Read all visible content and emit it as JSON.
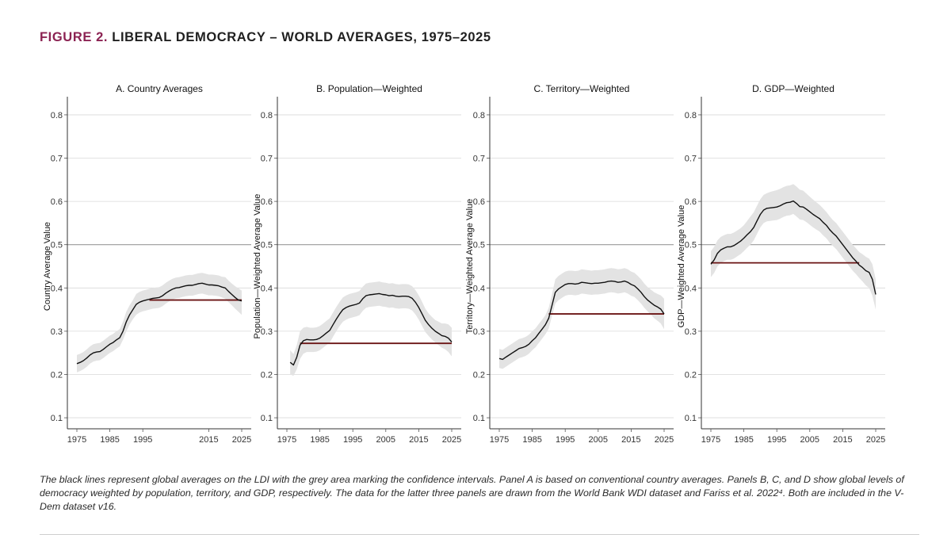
{
  "figure": {
    "number": "FIGURE 2.",
    "title": "LIBERAL DEMOCRACY – WORLD AVERAGES, 1975–2025"
  },
  "caption": "The black lines represent global averages on the LDI with the grey area marking the confidence intervals. Panel A is based on conventional country averages. Panels B, C, and D show global levels of democracy weighted by population, territory, and GDP, respectively. The data for the latter three panels are drawn from the World Bank WDI dataset and Fariss et al. 2022⁴.  Both are included in the V-Dem dataset v16.",
  "colors": {
    "line": "#111111",
    "band": "#e3e3e3",
    "reference_line": "#6b1414",
    "grid": "#d9d9d9",
    "midline": "#9a9a9a",
    "accent": "#8b2252"
  },
  "chart_data": [
    {
      "type": "line",
      "title": "A. Country Averages",
      "xlabel": "",
      "ylabel": "Country Average Value",
      "xlim": [
        1975,
        2025
      ],
      "ylim": [
        0.08,
        0.82
      ],
      "x_ticks": [
        1975,
        1985,
        1995,
        2015,
        2025
      ],
      "y_ticks": [
        0.1,
        0.2,
        0.3,
        0.4,
        0.5,
        0.6,
        0.7,
        0.8
      ],
      "grid": true,
      "highlight_y": 0.5,
      "reference": {
        "from": 1997,
        "to": 2025,
        "value": 0.372
      },
      "x": [
        1975,
        1976,
        1977,
        1978,
        1979,
        1980,
        1981,
        1982,
        1983,
        1984,
        1985,
        1986,
        1987,
        1988,
        1989,
        1990,
        1991,
        1992,
        1993,
        1994,
        1995,
        1996,
        1997,
        1998,
        1999,
        2000,
        2001,
        2002,
        2003,
        2004,
        2005,
        2006,
        2007,
        2008,
        2009,
        2010,
        2011,
        2012,
        2013,
        2014,
        2015,
        2016,
        2017,
        2018,
        2019,
        2020,
        2021,
        2022,
        2023,
        2024,
        2025
      ],
      "y": [
        0.225,
        0.228,
        0.232,
        0.238,
        0.245,
        0.25,
        0.252,
        0.253,
        0.258,
        0.264,
        0.27,
        0.274,
        0.28,
        0.285,
        0.3,
        0.322,
        0.338,
        0.35,
        0.362,
        0.367,
        0.37,
        0.372,
        0.374,
        0.376,
        0.377,
        0.378,
        0.382,
        0.388,
        0.393,
        0.397,
        0.4,
        0.401,
        0.403,
        0.405,
        0.406,
        0.406,
        0.408,
        0.41,
        0.411,
        0.409,
        0.407,
        0.407,
        0.406,
        0.405,
        0.402,
        0.4,
        0.392,
        0.385,
        0.378,
        0.372,
        0.37
      ],
      "lower": [
        0.205,
        0.208,
        0.212,
        0.218,
        0.225,
        0.23,
        0.232,
        0.233,
        0.238,
        0.244,
        0.25,
        0.254,
        0.26,
        0.265,
        0.28,
        0.3,
        0.316,
        0.328,
        0.338,
        0.343,
        0.346,
        0.348,
        0.35,
        0.352,
        0.353,
        0.354,
        0.358,
        0.364,
        0.369,
        0.373,
        0.376,
        0.377,
        0.379,
        0.381,
        0.382,
        0.382,
        0.384,
        0.386,
        0.387,
        0.385,
        0.383,
        0.383,
        0.382,
        0.381,
        0.378,
        0.375,
        0.367,
        0.36,
        0.352,
        0.345,
        0.338
      ],
      "upper": [
        0.245,
        0.248,
        0.252,
        0.258,
        0.265,
        0.27,
        0.272,
        0.273,
        0.278,
        0.284,
        0.29,
        0.294,
        0.3,
        0.305,
        0.322,
        0.345,
        0.36,
        0.372,
        0.386,
        0.391,
        0.394,
        0.396,
        0.398,
        0.4,
        0.401,
        0.402,
        0.406,
        0.412,
        0.417,
        0.421,
        0.424,
        0.425,
        0.427,
        0.429,
        0.43,
        0.43,
        0.432,
        0.434,
        0.435,
        0.433,
        0.431,
        0.431,
        0.43,
        0.429,
        0.426,
        0.425,
        0.417,
        0.41,
        0.404,
        0.399,
        0.394
      ]
    },
    {
      "type": "line",
      "title": "B. Population—Weighted",
      "xlabel": "",
      "ylabel": "Population—Weighted Average Value",
      "xlim": [
        1975,
        2025
      ],
      "ylim": [
        0.08,
        0.82
      ],
      "x_ticks": [
        1975,
        1985,
        1995,
        2005,
        2015,
        2025
      ],
      "y_ticks": [
        0.1,
        0.2,
        0.3,
        0.4,
        0.5,
        0.6,
        0.7,
        0.8
      ],
      "grid": true,
      "highlight_y": 0.5,
      "reference": {
        "from": 1979,
        "to": 2025,
        "value": 0.272
      },
      "x": [
        1976,
        1977,
        1978,
        1979,
        1980,
        1981,
        1982,
        1983,
        1984,
        1985,
        1986,
        1987,
        1988,
        1989,
        1990,
        1991,
        1992,
        1993,
        1994,
        1995,
        1996,
        1997,
        1998,
        1999,
        2000,
        2001,
        2002,
        2003,
        2004,
        2005,
        2006,
        2007,
        2008,
        2009,
        2010,
        2011,
        2012,
        2013,
        2014,
        2015,
        2016,
        2017,
        2018,
        2019,
        2020,
        2021,
        2022,
        2023,
        2024,
        2025
      ],
      "y": [
        0.228,
        0.222,
        0.24,
        0.268,
        0.278,
        0.281,
        0.28,
        0.28,
        0.281,
        0.284,
        0.29,
        0.296,
        0.302,
        0.315,
        0.328,
        0.34,
        0.35,
        0.355,
        0.358,
        0.36,
        0.362,
        0.365,
        0.375,
        0.382,
        0.384,
        0.385,
        0.386,
        0.387,
        0.385,
        0.384,
        0.382,
        0.383,
        0.381,
        0.38,
        0.381,
        0.381,
        0.38,
        0.376,
        0.367,
        0.355,
        0.34,
        0.325,
        0.315,
        0.307,
        0.3,
        0.295,
        0.29,
        0.288,
        0.284,
        0.275
      ],
      "lower": [
        0.2,
        0.197,
        0.212,
        0.236,
        0.248,
        0.252,
        0.252,
        0.252,
        0.253,
        0.256,
        0.262,
        0.268,
        0.274,
        0.287,
        0.3,
        0.312,
        0.322,
        0.327,
        0.33,
        0.332,
        0.334,
        0.337,
        0.347,
        0.354,
        0.356,
        0.357,
        0.358,
        0.359,
        0.357,
        0.356,
        0.354,
        0.355,
        0.353,
        0.352,
        0.353,
        0.353,
        0.352,
        0.348,
        0.339,
        0.327,
        0.312,
        0.298,
        0.289,
        0.281,
        0.274,
        0.268,
        0.262,
        0.258,
        0.252,
        0.242
      ],
      "upper": [
        0.256,
        0.247,
        0.268,
        0.3,
        0.308,
        0.31,
        0.308,
        0.308,
        0.309,
        0.312,
        0.318,
        0.324,
        0.33,
        0.343,
        0.356,
        0.368,
        0.378,
        0.383,
        0.386,
        0.388,
        0.39,
        0.393,
        0.403,
        0.41,
        0.412,
        0.413,
        0.414,
        0.415,
        0.413,
        0.412,
        0.41,
        0.411,
        0.409,
        0.408,
        0.409,
        0.409,
        0.408,
        0.404,
        0.395,
        0.383,
        0.368,
        0.352,
        0.341,
        0.333,
        0.326,
        0.322,
        0.318,
        0.318,
        0.316,
        0.308
      ]
    },
    {
      "type": "line",
      "title": "C. Territory—Weighted",
      "xlabel": "",
      "ylabel": "Territory—Weighted Average Value",
      "xlim": [
        1975,
        2025
      ],
      "ylim": [
        0.08,
        0.82
      ],
      "x_ticks": [
        1975,
        1985,
        1995,
        2005,
        2015,
        2025
      ],
      "y_ticks": [
        0.1,
        0.2,
        0.3,
        0.4,
        0.5,
        0.6,
        0.7,
        0.8
      ],
      "grid": true,
      "highlight_y": 0.5,
      "reference": {
        "from": 1990,
        "to": 2025,
        "value": 0.34
      },
      "x": [
        1975,
        1976,
        1977,
        1978,
        1979,
        1980,
        1981,
        1982,
        1983,
        1984,
        1985,
        1986,
        1987,
        1988,
        1989,
        1990,
        1991,
        1992,
        1993,
        1994,
        1995,
        1996,
        1997,
        1998,
        1999,
        2000,
        2001,
        2002,
        2003,
        2004,
        2005,
        2006,
        2007,
        2008,
        2009,
        2010,
        2011,
        2012,
        2013,
        2014,
        2015,
        2016,
        2017,
        2018,
        2019,
        2020,
        2021,
        2022,
        2023,
        2024,
        2025
      ],
      "y": [
        0.237,
        0.235,
        0.24,
        0.245,
        0.25,
        0.255,
        0.26,
        0.262,
        0.265,
        0.27,
        0.278,
        0.285,
        0.295,
        0.305,
        0.315,
        0.33,
        0.36,
        0.39,
        0.398,
        0.403,
        0.408,
        0.41,
        0.41,
        0.409,
        0.41,
        0.413,
        0.412,
        0.411,
        0.41,
        0.411,
        0.411,
        0.412,
        0.413,
        0.415,
        0.416,
        0.415,
        0.413,
        0.414,
        0.416,
        0.413,
        0.408,
        0.405,
        0.398,
        0.39,
        0.38,
        0.372,
        0.366,
        0.36,
        0.356,
        0.351,
        0.34
      ],
      "lower": [
        0.215,
        0.213,
        0.218,
        0.223,
        0.228,
        0.233,
        0.238,
        0.24,
        0.243,
        0.248,
        0.256,
        0.263,
        0.273,
        0.283,
        0.293,
        0.306,
        0.336,
        0.364,
        0.372,
        0.377,
        0.382,
        0.384,
        0.384,
        0.383,
        0.384,
        0.387,
        0.386,
        0.385,
        0.384,
        0.385,
        0.385,
        0.386,
        0.387,
        0.389,
        0.39,
        0.389,
        0.387,
        0.388,
        0.39,
        0.387,
        0.382,
        0.379,
        0.372,
        0.364,
        0.354,
        0.346,
        0.338,
        0.33,
        0.324,
        0.318,
        0.305
      ],
      "upper": [
        0.259,
        0.257,
        0.262,
        0.267,
        0.272,
        0.277,
        0.282,
        0.284,
        0.287,
        0.292,
        0.3,
        0.307,
        0.317,
        0.327,
        0.337,
        0.354,
        0.386,
        0.42,
        0.428,
        0.433,
        0.438,
        0.44,
        0.44,
        0.439,
        0.44,
        0.443,
        0.442,
        0.441,
        0.44,
        0.441,
        0.441,
        0.442,
        0.443,
        0.445,
        0.446,
        0.445,
        0.443,
        0.444,
        0.446,
        0.443,
        0.438,
        0.435,
        0.428,
        0.42,
        0.41,
        0.402,
        0.396,
        0.39,
        0.386,
        0.383,
        0.375
      ]
    },
    {
      "type": "line",
      "title": "D. GDP—Weighted",
      "xlabel": "",
      "ylabel": "GDP—Weighted Average Value",
      "xlim": [
        1975,
        2025
      ],
      "ylim": [
        0.08,
        0.82
      ],
      "x_ticks": [
        1975,
        1985,
        1995,
        2005,
        2015,
        2025
      ],
      "y_ticks": [
        0.1,
        0.2,
        0.3,
        0.4,
        0.5,
        0.6,
        0.7,
        0.8
      ],
      "grid": true,
      "highlight_y": 0.5,
      "reference": {
        "from": 1975,
        "to": 2020,
        "value": 0.458
      },
      "x": [
        1975,
        1976,
        1977,
        1978,
        1979,
        1980,
        1981,
        1982,
        1983,
        1984,
        1985,
        1986,
        1987,
        1988,
        1989,
        1990,
        1991,
        1992,
        1993,
        1994,
        1995,
        1996,
        1997,
        1998,
        1999,
        2000,
        2001,
        2002,
        2003,
        2004,
        2005,
        2006,
        2007,
        2008,
        2009,
        2010,
        2011,
        2012,
        2013,
        2014,
        2015,
        2016,
        2017,
        2018,
        2019,
        2020,
        2021,
        2022,
        2023,
        2024,
        2025
      ],
      "y": [
        0.455,
        0.465,
        0.48,
        0.488,
        0.492,
        0.495,
        0.495,
        0.498,
        0.503,
        0.508,
        0.515,
        0.523,
        0.53,
        0.54,
        0.555,
        0.57,
        0.58,
        0.584,
        0.585,
        0.586,
        0.587,
        0.59,
        0.594,
        0.597,
        0.598,
        0.601,
        0.595,
        0.588,
        0.587,
        0.582,
        0.576,
        0.57,
        0.565,
        0.56,
        0.552,
        0.545,
        0.535,
        0.527,
        0.52,
        0.51,
        0.5,
        0.49,
        0.48,
        0.47,
        0.462,
        0.453,
        0.447,
        0.44,
        0.436,
        0.42,
        0.385
      ],
      "lower": [
        0.425,
        0.435,
        0.45,
        0.458,
        0.462,
        0.465,
        0.465,
        0.468,
        0.473,
        0.478,
        0.485,
        0.493,
        0.5,
        0.51,
        0.525,
        0.54,
        0.55,
        0.554,
        0.555,
        0.556,
        0.557,
        0.56,
        0.564,
        0.567,
        0.568,
        0.571,
        0.565,
        0.558,
        0.557,
        0.552,
        0.546,
        0.54,
        0.535,
        0.53,
        0.522,
        0.515,
        0.505,
        0.497,
        0.49,
        0.48,
        0.47,
        0.46,
        0.45,
        0.44,
        0.432,
        0.423,
        0.415,
        0.406,
        0.4,
        0.382,
        0.35
      ],
      "upper": [
        0.485,
        0.495,
        0.51,
        0.518,
        0.522,
        0.525,
        0.525,
        0.528,
        0.533,
        0.538,
        0.545,
        0.555,
        0.565,
        0.575,
        0.59,
        0.605,
        0.615,
        0.619,
        0.622,
        0.624,
        0.626,
        0.629,
        0.633,
        0.636,
        0.637,
        0.64,
        0.634,
        0.627,
        0.625,
        0.618,
        0.611,
        0.604,
        0.598,
        0.592,
        0.584,
        0.576,
        0.566,
        0.557,
        0.55,
        0.54,
        0.53,
        0.52,
        0.51,
        0.5,
        0.492,
        0.483,
        0.478,
        0.472,
        0.468,
        0.455,
        0.42
      ]
    }
  ]
}
